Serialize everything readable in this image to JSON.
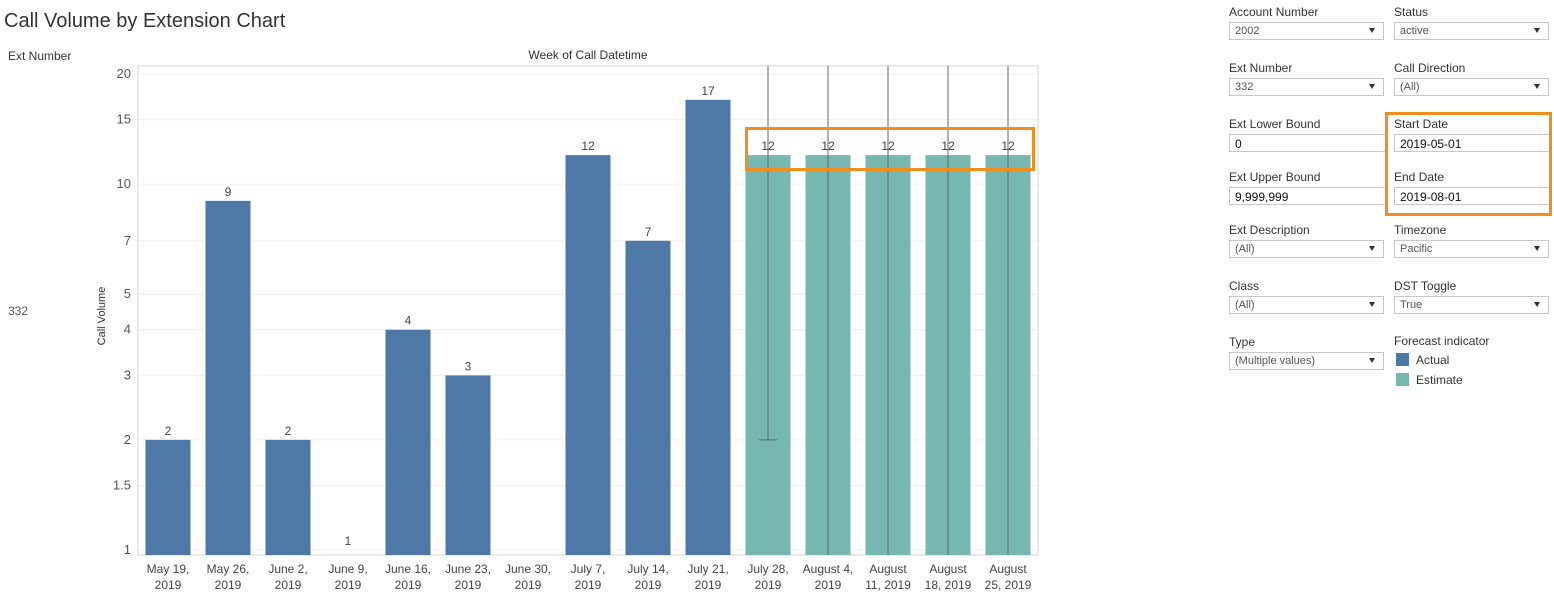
{
  "title": "Call Volume by Extension Chart",
  "row_header": "Ext Number",
  "row_value": "332",
  "chart_data": {
    "type": "bar",
    "title": "Call Volume by Extension Chart",
    "xlabel": "Week of Call Datetime",
    "ylabel": "Call Volume",
    "yscale": "log",
    "ylim": [
      1,
      20
    ],
    "yticks": [
      "1",
      "1.5",
      "2",
      "3",
      "4",
      "5",
      "7",
      "10",
      "15",
      "20"
    ],
    "categories": [
      [
        "May 19,",
        "2019"
      ],
      [
        "May 26,",
        "2019"
      ],
      [
        "June 2,",
        "2019"
      ],
      [
        "June 9,",
        "2019"
      ],
      [
        "June 16,",
        "2019"
      ],
      [
        "June 23,",
        "2019"
      ],
      [
        "June 30,",
        "2019"
      ],
      [
        "July 7,",
        "2019"
      ],
      [
        "July 14,",
        "2019"
      ],
      [
        "July 21,",
        "2019"
      ],
      [
        "July 28,",
        "2019"
      ],
      [
        "August 4,",
        "2019"
      ],
      [
        "August",
        "11, 2019"
      ],
      [
        "August",
        "18, 2019"
      ],
      [
        "August",
        "25, 2019"
      ]
    ],
    "values": [
      2,
      9,
      2,
      1,
      4,
      3,
      null,
      12,
      7,
      17,
      12,
      12,
      12,
      12,
      12
    ],
    "series_type": [
      "Actual",
      "Actual",
      "Actual",
      "Actual",
      "Actual",
      "Actual",
      "Actual",
      "Actual",
      "Actual",
      "Actual",
      "Estimate",
      "Estimate",
      "Estimate",
      "Estimate",
      "Estimate"
    ],
    "error_low": [
      null,
      null,
      null,
      null,
      null,
      null,
      null,
      null,
      null,
      null,
      2,
      1,
      1,
      1,
      1
    ],
    "error_high": [
      null,
      null,
      null,
      null,
      null,
      null,
      null,
      null,
      null,
      null,
      20,
      20,
      20,
      20,
      20
    ],
    "colors": {
      "Actual": "#4e79a7",
      "Estimate": "#76b7b2",
      "highlight": "#f28e1c"
    }
  },
  "filters": [
    {
      "label": "Account Number",
      "value": "2002",
      "type": "select"
    },
    {
      "label": "Status",
      "value": "active",
      "type": "select"
    },
    {
      "label": "Ext Number",
      "value": "332",
      "type": "select"
    },
    {
      "label": "Call Direction",
      "value": "(All)",
      "type": "select"
    },
    {
      "label": "Ext Lower Bound",
      "value": "0",
      "type": "text"
    },
    {
      "label": "Start Date",
      "value": "2019-05-01",
      "type": "text"
    },
    {
      "label": "Ext Upper Bound",
      "value": "9,999,999",
      "type": "text"
    },
    {
      "label": "End Date",
      "value": "2019-08-01",
      "type": "text"
    },
    {
      "label": "Ext Description",
      "value": "(All)",
      "type": "select"
    },
    {
      "label": "Timezone",
      "value": "Pacific",
      "type": "select"
    },
    {
      "label": "Class",
      "value": "(All)",
      "type": "select"
    },
    {
      "label": "DST Toggle",
      "value": "True",
      "type": "select"
    },
    {
      "label": "Type",
      "value": "(Multiple values)",
      "type": "select"
    }
  ],
  "legend": {
    "title": "Forecast indicator",
    "items": [
      "Actual",
      "Estimate"
    ]
  }
}
